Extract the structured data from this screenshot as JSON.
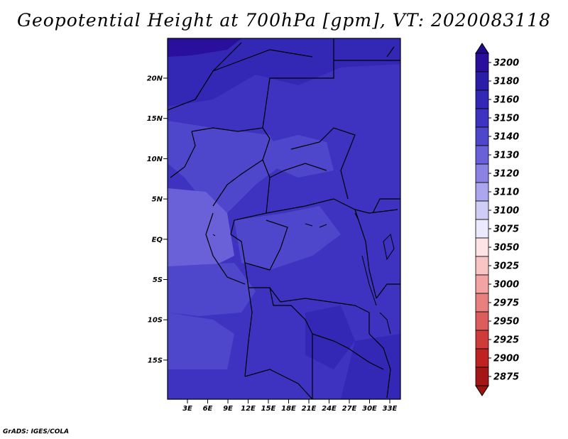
{
  "title": "Geopotential Height at 700hPa [gpm], VT: 2020083118",
  "credit": "GrADS: IGES/COLA",
  "map": {
    "lon_labels": [
      "3E",
      "6E",
      "9E",
      "12E",
      "15E",
      "18E",
      "21E",
      "24E",
      "27E",
      "30E",
      "33E"
    ],
    "lat_labels": [
      "20N",
      "15N",
      "10N",
      "5N",
      "EQ",
      "5S",
      "10S",
      "15S"
    ]
  },
  "colorbar": {
    "levels": [
      "3200",
      "3180",
      "3160",
      "3150",
      "3140",
      "3130",
      "3120",
      "3110",
      "3100",
      "3075",
      "3050",
      "3025",
      "3000",
      "2975",
      "2950",
      "2925",
      "2900",
      "2875"
    ],
    "colors": [
      "#2a0f9c",
      "#2a1ea8",
      "#3327b5",
      "#3d33c0",
      "#4e47cc",
      "#6a60d8",
      "#8b83e4",
      "#aba6ee",
      "#cfcdf6",
      "#ebeafc",
      "#fde3e3",
      "#f9c4c4",
      "#f2a3a3",
      "#e88080",
      "#dd5c5c",
      "#cf3b3b",
      "#be2222",
      "#a51616"
    ],
    "top_cap_color": "#1f0a8a",
    "bottom_cap_color": "#9a1414"
  }
}
